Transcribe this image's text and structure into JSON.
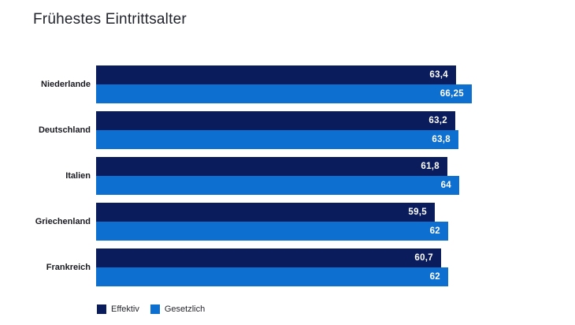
{
  "chart_data": {
    "type": "bar",
    "orientation": "horizontal",
    "title": "Frühestes Eintrittsalter",
    "categories": [
      "Niederlande",
      "Deutschland",
      "Italien",
      "Griechenland",
      "Frankreich"
    ],
    "series": [
      {
        "name": "Effektiv",
        "color": "#0A1C5C",
        "values": [
          63.4,
          63.2,
          61.8,
          59.5,
          60.7
        ],
        "labels": [
          "63,4",
          "63,2",
          "61,8",
          "59,5",
          "60,7"
        ]
      },
      {
        "name": "Gesetzlich",
        "color": "#0D6FCF",
        "values": [
          66.25,
          63.8,
          64,
          62,
          62
        ],
        "labels": [
          "66,25",
          "63,8",
          "64",
          "62",
          "62"
        ]
      }
    ],
    "value_labels_inside_bars": true,
    "value_label_color": "#ffffff",
    "legend_position": "bottom",
    "grid": false,
    "value_axis_hidden": true,
    "background_color": "#ffffff"
  }
}
